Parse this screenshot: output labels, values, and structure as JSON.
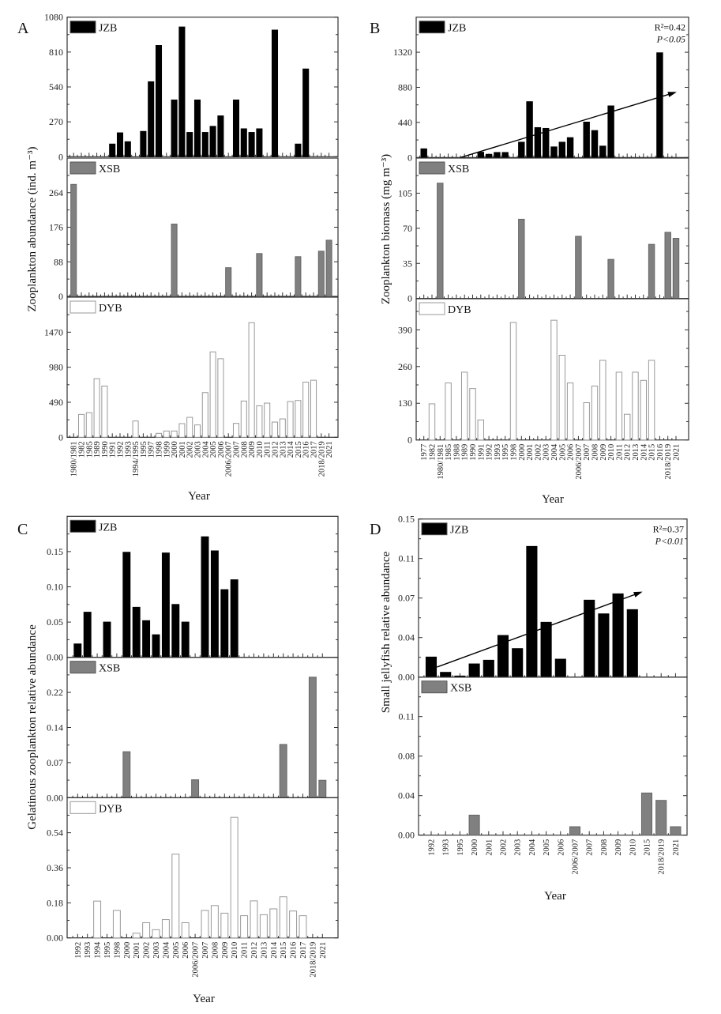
{
  "chart_data": [
    {
      "panel": "A",
      "type": "bar",
      "ylabel": "Zooplankton abundance (ind. m⁻³)",
      "xlabel": "Year",
      "categories": [
        "1980/1981",
        "1982",
        "1985",
        "1989",
        "1990",
        "1991",
        "1992",
        "1993",
        "1994/1995",
        "1995",
        "1997",
        "1998",
        "1999",
        "2000",
        "2001",
        "2002",
        "2003",
        "2004",
        "2005",
        "2006",
        "2006/2007",
        "2007",
        "2008",
        "2009",
        "2010",
        "2011",
        "2012",
        "2013",
        "2014",
        "2015",
        "2016",
        "2017",
        "2018/2019",
        "2021"
      ],
      "subplots": [
        {
          "name": "JZB",
          "color": "#000000",
          "ylim": [
            0,
            1080
          ],
          "ytick_step": 270,
          "ytick_labels": [
            "0",
            "270",
            "540",
            "810",
            "1080"
          ],
          "values": [
            null,
            null,
            null,
            null,
            null,
            98,
            185,
            116,
            null,
            196,
            580,
            861,
            null,
            439,
            1004,
            188,
            439,
            188,
            235,
            316,
            null,
            439,
            216,
            188,
            216,
            null,
            980,
            null,
            null,
            98,
            679,
            null,
            null,
            null
          ]
        },
        {
          "name": "XSB",
          "color": "#808080",
          "ylim": [
            0,
            352
          ],
          "ytick_step": 88,
          "ytick_labels": [
            "0",
            "88",
            "176",
            "264"
          ],
          "values": [
            285,
            null,
            null,
            null,
            null,
            null,
            null,
            null,
            null,
            null,
            null,
            null,
            null,
            184,
            null,
            null,
            null,
            null,
            null,
            null,
            73,
            null,
            null,
            null,
            109,
            null,
            null,
            null,
            null,
            101,
            null,
            null,
            115,
            143
          ]
        },
        {
          "name": "DYB",
          "color": "#ffffff",
          "ylim": [
            0,
            1960
          ],
          "ytick_step": 490,
          "ytick_labels": [
            "0",
            "490",
            "980",
            "1470"
          ],
          "values": [
            null,
            320,
            345,
            820,
            717,
            null,
            null,
            null,
            228,
            null,
            null,
            55,
            88,
            88,
            191,
            279,
            173,
            625,
            1195,
            1099,
            null,
            195,
            507,
            1603,
            441,
            478,
            213,
            257,
            500,
            515,
            772,
            798,
            null,
            null
          ]
        }
      ]
    },
    {
      "panel": "B",
      "type": "bar",
      "ylabel": "Zooplankton biomass (mg m⁻³)",
      "xlabel": "Year",
      "categories": [
        "1977",
        "1982",
        "1980/1981",
        "1985",
        "1988",
        "1989",
        "1990",
        "1991",
        "1992",
        "1993",
        "1995",
        "1998",
        "2000",
        "2001",
        "2002",
        "2003",
        "2004",
        "2005",
        "2006",
        "2006/2007",
        "2007",
        "2008",
        "2009",
        "2010",
        "2011",
        "2012",
        "2013",
        "2014",
        "2015",
        "2016",
        "2018/2019",
        "2021"
      ],
      "subplots": [
        {
          "name": "JZB",
          "color": "#000000",
          "ylim": [
            0,
            1760
          ],
          "ytick_step": 440,
          "ytick_labels": [
            "0",
            "440",
            "880",
            "1320"
          ],
          "values": [
            109,
            null,
            null,
            null,
            null,
            null,
            null,
            66,
            40,
            63,
            63,
            null,
            192,
            700,
            375,
            365,
            133,
            192,
            249,
            null,
            444,
            338,
            143,
            647,
            null,
            null,
            null,
            null,
            null,
            1313,
            null,
            null
          ],
          "trend": {
            "r2_label": "R²=0.42",
            "p_label": "P<0.05",
            "start": [
              4.5,
              0
            ],
            "end": [
              30.9,
              816
            ]
          }
        },
        {
          "name": "XSB",
          "color": "#808080",
          "ylim": [
            0,
            140
          ],
          "ytick_step": 35,
          "ytick_labels": [
            "0",
            "35",
            "70",
            "105"
          ],
          "values": [
            null,
            null,
            115,
            null,
            null,
            null,
            null,
            null,
            null,
            null,
            null,
            null,
            79,
            null,
            null,
            null,
            null,
            null,
            null,
            62,
            null,
            null,
            null,
            39,
            null,
            null,
            null,
            null,
            54,
            null,
            66,
            60
          ]
        },
        {
          "name": "DYB",
          "color": "#ffffff",
          "ylim": [
            0,
            500
          ],
          "ytick_step": 130,
          "ytick_labels": [
            "0",
            "130",
            "260",
            "390"
          ],
          "values": [
            null,
            128,
            null,
            202,
            null,
            240,
            182,
            71,
            null,
            null,
            null,
            416,
            null,
            null,
            null,
            null,
            424,
            300,
            202,
            null,
            132,
            191,
            282,
            null,
            240,
            91,
            240,
            211,
            282,
            null,
            null,
            null
          ]
        }
      ]
    },
    {
      "panel": "C",
      "type": "bar",
      "ylabel": "Gelatinous zooplankton relative abundance",
      "xlabel": "Year",
      "categories": [
        "1992",
        "1993",
        "1994",
        "1995",
        "1998",
        "2000",
        "2001",
        "2002",
        "2003",
        "2004",
        "2005",
        "2006",
        "2006/2007",
        "2007",
        "2008",
        "2009",
        "2010",
        "2011",
        "2012",
        "2013",
        "2014",
        "2015",
        "2016",
        "2017",
        "2018/2019",
        "2021"
      ],
      "subplots": [
        {
          "name": "JZB",
          "color": "#000000",
          "ylim": [
            0,
            0.2
          ],
          "ytick_step": 0.05,
          "ytick_labels": [
            "0.00",
            "0.05",
            "0.10",
            "0.15"
          ],
          "values": [
            0.019,
            0.064,
            null,
            0.05,
            null,
            0.149,
            0.071,
            0.052,
            0.032,
            0.148,
            0.075,
            0.05,
            null,
            0.171,
            0.151,
            0.096,
            0.11,
            null,
            null,
            null,
            null,
            null,
            null,
            null,
            null,
            null
          ]
        },
        {
          "name": "XSB",
          "color": "#808080",
          "ylim": [
            0,
            0.29
          ],
          "ytick_step": 0.0725,
          "ytick_labels": [
            "0.00",
            "0.07",
            "0.14",
            "0.22"
          ],
          "values": [
            null,
            null,
            null,
            null,
            null,
            0.095,
            null,
            null,
            null,
            null,
            null,
            null,
            0.037,
            null,
            null,
            null,
            null,
            null,
            null,
            null,
            null,
            0.11,
            null,
            null,
            0.249,
            0.036
          ]
        },
        {
          "name": "DYB",
          "color": "#ffffff",
          "ylim": [
            0,
            0.72
          ],
          "ytick_step": 0.18,
          "ytick_labels": [
            "0.00",
            "0.18",
            "0.36",
            "0.54"
          ],
          "values": [
            null,
            null,
            0.189,
            null,
            0.141,
            null,
            0.024,
            0.078,
            0.042,
            0.094,
            0.43,
            0.078,
            null,
            0.141,
            0.166,
            0.127,
            0.619,
            0.114,
            0.19,
            0.119,
            0.149,
            0.211,
            0.138,
            0.114,
            null,
            null
          ]
        }
      ]
    },
    {
      "panel": "D",
      "type": "bar",
      "ylabel": "Small jellyfish relative abundance",
      "xlabel": "Year",
      "categories": [
        "1992",
        "1993",
        "1995",
        "2000",
        "2001",
        "2002",
        "2003",
        "2004",
        "2005",
        "2006",
        "2006/2007",
        "2007",
        "2008",
        "2009",
        "2010",
        "2015",
        "2018/2019",
        "2021"
      ],
      "subplots": [
        {
          "name": "JZB",
          "color": "#000000",
          "ylim": [
            0,
            0.15
          ],
          "ytick_step": 0.0375,
          "ytick_labels": [
            "0.00",
            "0.04",
            "0.07",
            "0.11",
            "0.15"
          ],
          "values": [
            0.019,
            0.0045,
            0.001,
            0.0125,
            0.016,
            0.0395,
            0.027,
            0.124,
            0.052,
            0.017,
            null,
            0.073,
            0.06,
            0.079,
            0.064,
            null,
            null,
            null
          ],
          "trend": {
            "r2_label": "R²=0.37",
            "p_label": "P<0.01",
            "start": [
              0.4,
              0.0095
            ],
            "end": [
              14.6,
              0.0805
            ]
          }
        },
        {
          "name": "XSB",
          "color": "#808080",
          "ylim": [
            0,
            0.15
          ],
          "ytick_step": 0.0375,
          "ytick_labels": [
            "0.00",
            "0.04",
            "0.08",
            "0.11"
          ],
          "values": [
            null,
            null,
            null,
            0.019,
            null,
            null,
            null,
            null,
            null,
            null,
            0.008,
            null,
            null,
            null,
            null,
            0.04,
            0.033,
            0.008
          ]
        }
      ]
    }
  ]
}
